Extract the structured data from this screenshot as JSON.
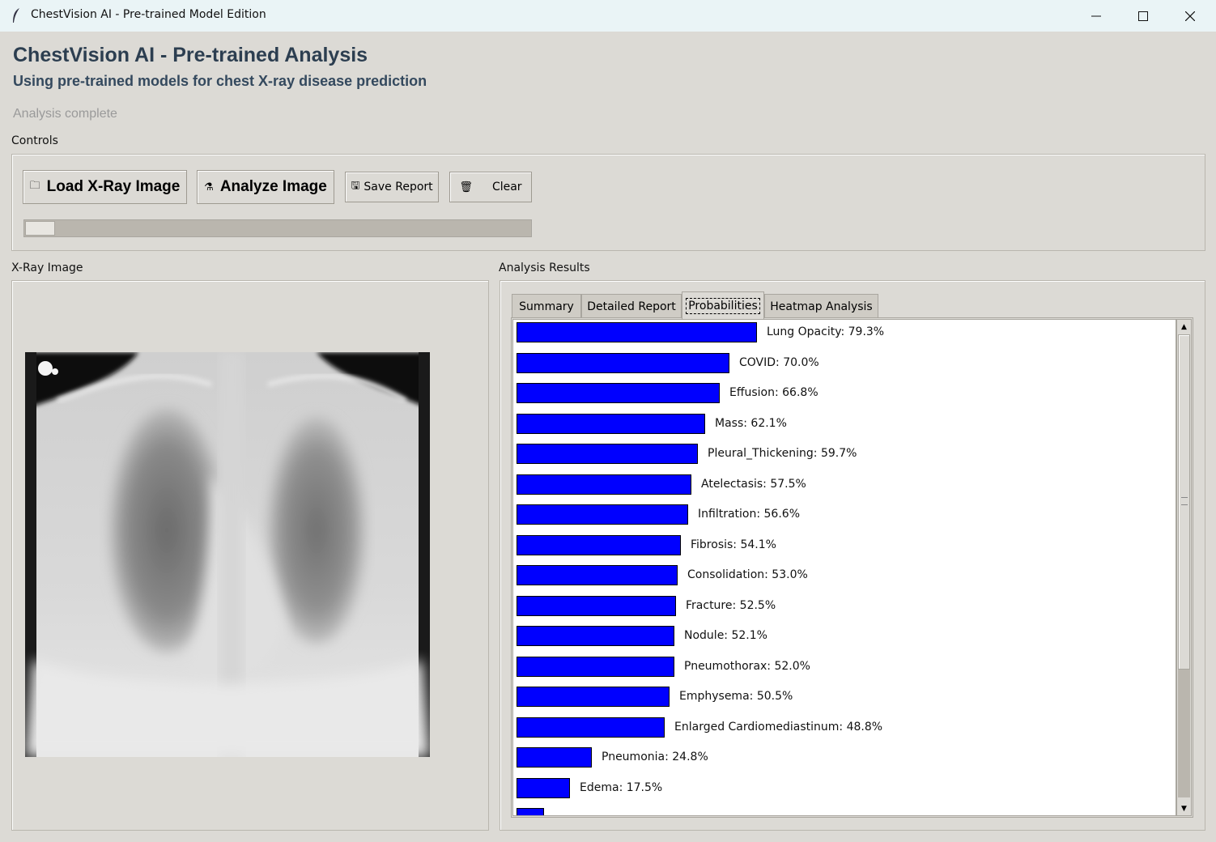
{
  "window": {
    "title": "ChestVision AI - Pre-trained Model Edition",
    "controls": [
      "minimize-icon",
      "maximize-icon",
      "close-icon"
    ]
  },
  "header": {
    "title": "ChestVision AI - Pre-trained Analysis",
    "subtitle": "Using pre-trained models for chest X-ray disease prediction",
    "status": "Analysis complete"
  },
  "controls": {
    "label": "Controls",
    "load_label": "Load X-Ray Image",
    "analyze_label": "Analyze Image",
    "save_label": "Save Report",
    "clear_label": "Clear",
    "progress": 0.06
  },
  "xray": {
    "label": "X-Ray Image"
  },
  "results": {
    "label": "Analysis Results",
    "tabs": [
      "Summary",
      "Detailed Report",
      "Probabilities",
      "Heatmap Analysis"
    ],
    "active_tab": "Probabilities",
    "bar_color": "#0000ff",
    "probabilities": [
      {
        "label": "Lung Opacity: 79.3%",
        "value": 79.3
      },
      {
        "label": "COVID: 70.0%",
        "value": 70.0
      },
      {
        "label": "Effusion: 66.8%",
        "value": 66.8
      },
      {
        "label": "Mass: 62.1%",
        "value": 62.1
      },
      {
        "label": "Pleural_Thickening: 59.7%",
        "value": 59.7
      },
      {
        "label": "Atelectasis: 57.5%",
        "value": 57.5
      },
      {
        "label": "Infiltration: 56.6%",
        "value": 56.6
      },
      {
        "label": "Fibrosis: 54.1%",
        "value": 54.1
      },
      {
        "label": "Consolidation: 53.0%",
        "value": 53.0
      },
      {
        "label": "Fracture: 52.5%",
        "value": 52.5
      },
      {
        "label": "Nodule: 52.1%",
        "value": 52.1
      },
      {
        "label": "Pneumothorax: 52.0%",
        "value": 52.0
      },
      {
        "label": "Emphysema: 50.5%",
        "value": 50.5
      },
      {
        "label": "Enlarged Cardiomediastinum: 48.8%",
        "value": 48.8
      },
      {
        "label": "Pneumonia: 24.8%",
        "value": 24.8
      },
      {
        "label": "Edema: 17.5%",
        "value": 17.5
      },
      {
        "label": "",
        "value": 9.0
      }
    ]
  }
}
